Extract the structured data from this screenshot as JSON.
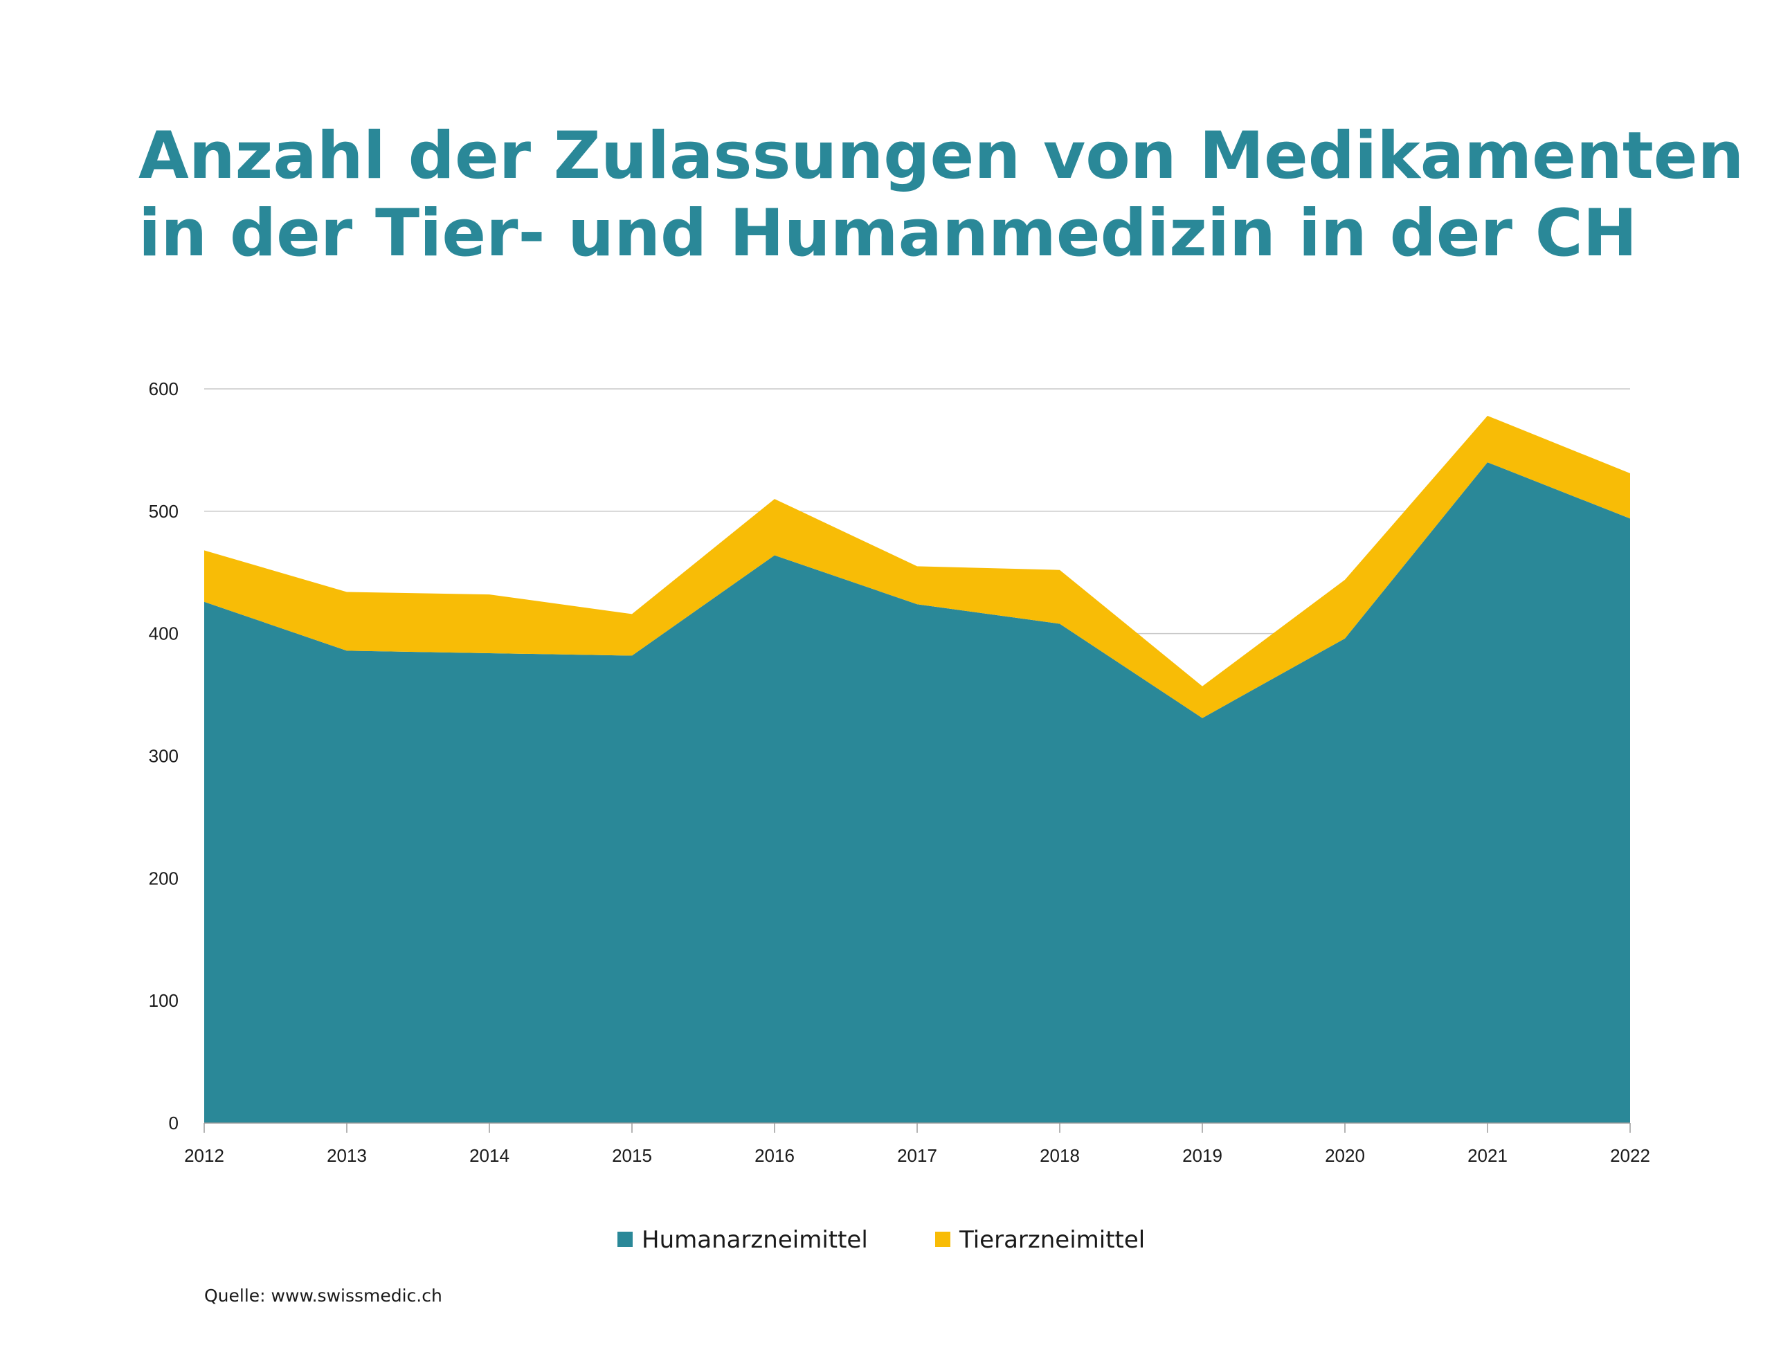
{
  "chart_data": {
    "type": "area",
    "stacked": true,
    "title_lines": [
      "Anzahl der Zulassungen von Medikamenten",
      "in der Tier- und Humanmedizin in der CH"
    ],
    "x": [
      "2012",
      "2013",
      "2014",
      "2015",
      "2016",
      "2017",
      "2018",
      "2019",
      "2020",
      "2021",
      "2022"
    ],
    "series": [
      {
        "name": "Humanarzneimittel",
        "color": "#2a8898",
        "values": [
          426,
          386,
          384,
          382,
          464,
          424,
          408,
          331,
          396,
          540,
          494
        ]
      },
      {
        "name": "Tierarzneimittel",
        "color": "#f8bc06",
        "values": [
          42,
          48,
          48,
          34,
          46,
          31,
          44,
          26,
          48,
          38,
          37
        ]
      }
    ],
    "ylim": [
      0,
      600
    ],
    "yticks": [
      "0",
      "100",
      "200",
      "300",
      "400",
      "500",
      "600"
    ],
    "grid": true,
    "legend_position": "bottom-center",
    "source": "Quelle: www.swissmedic.ch"
  }
}
